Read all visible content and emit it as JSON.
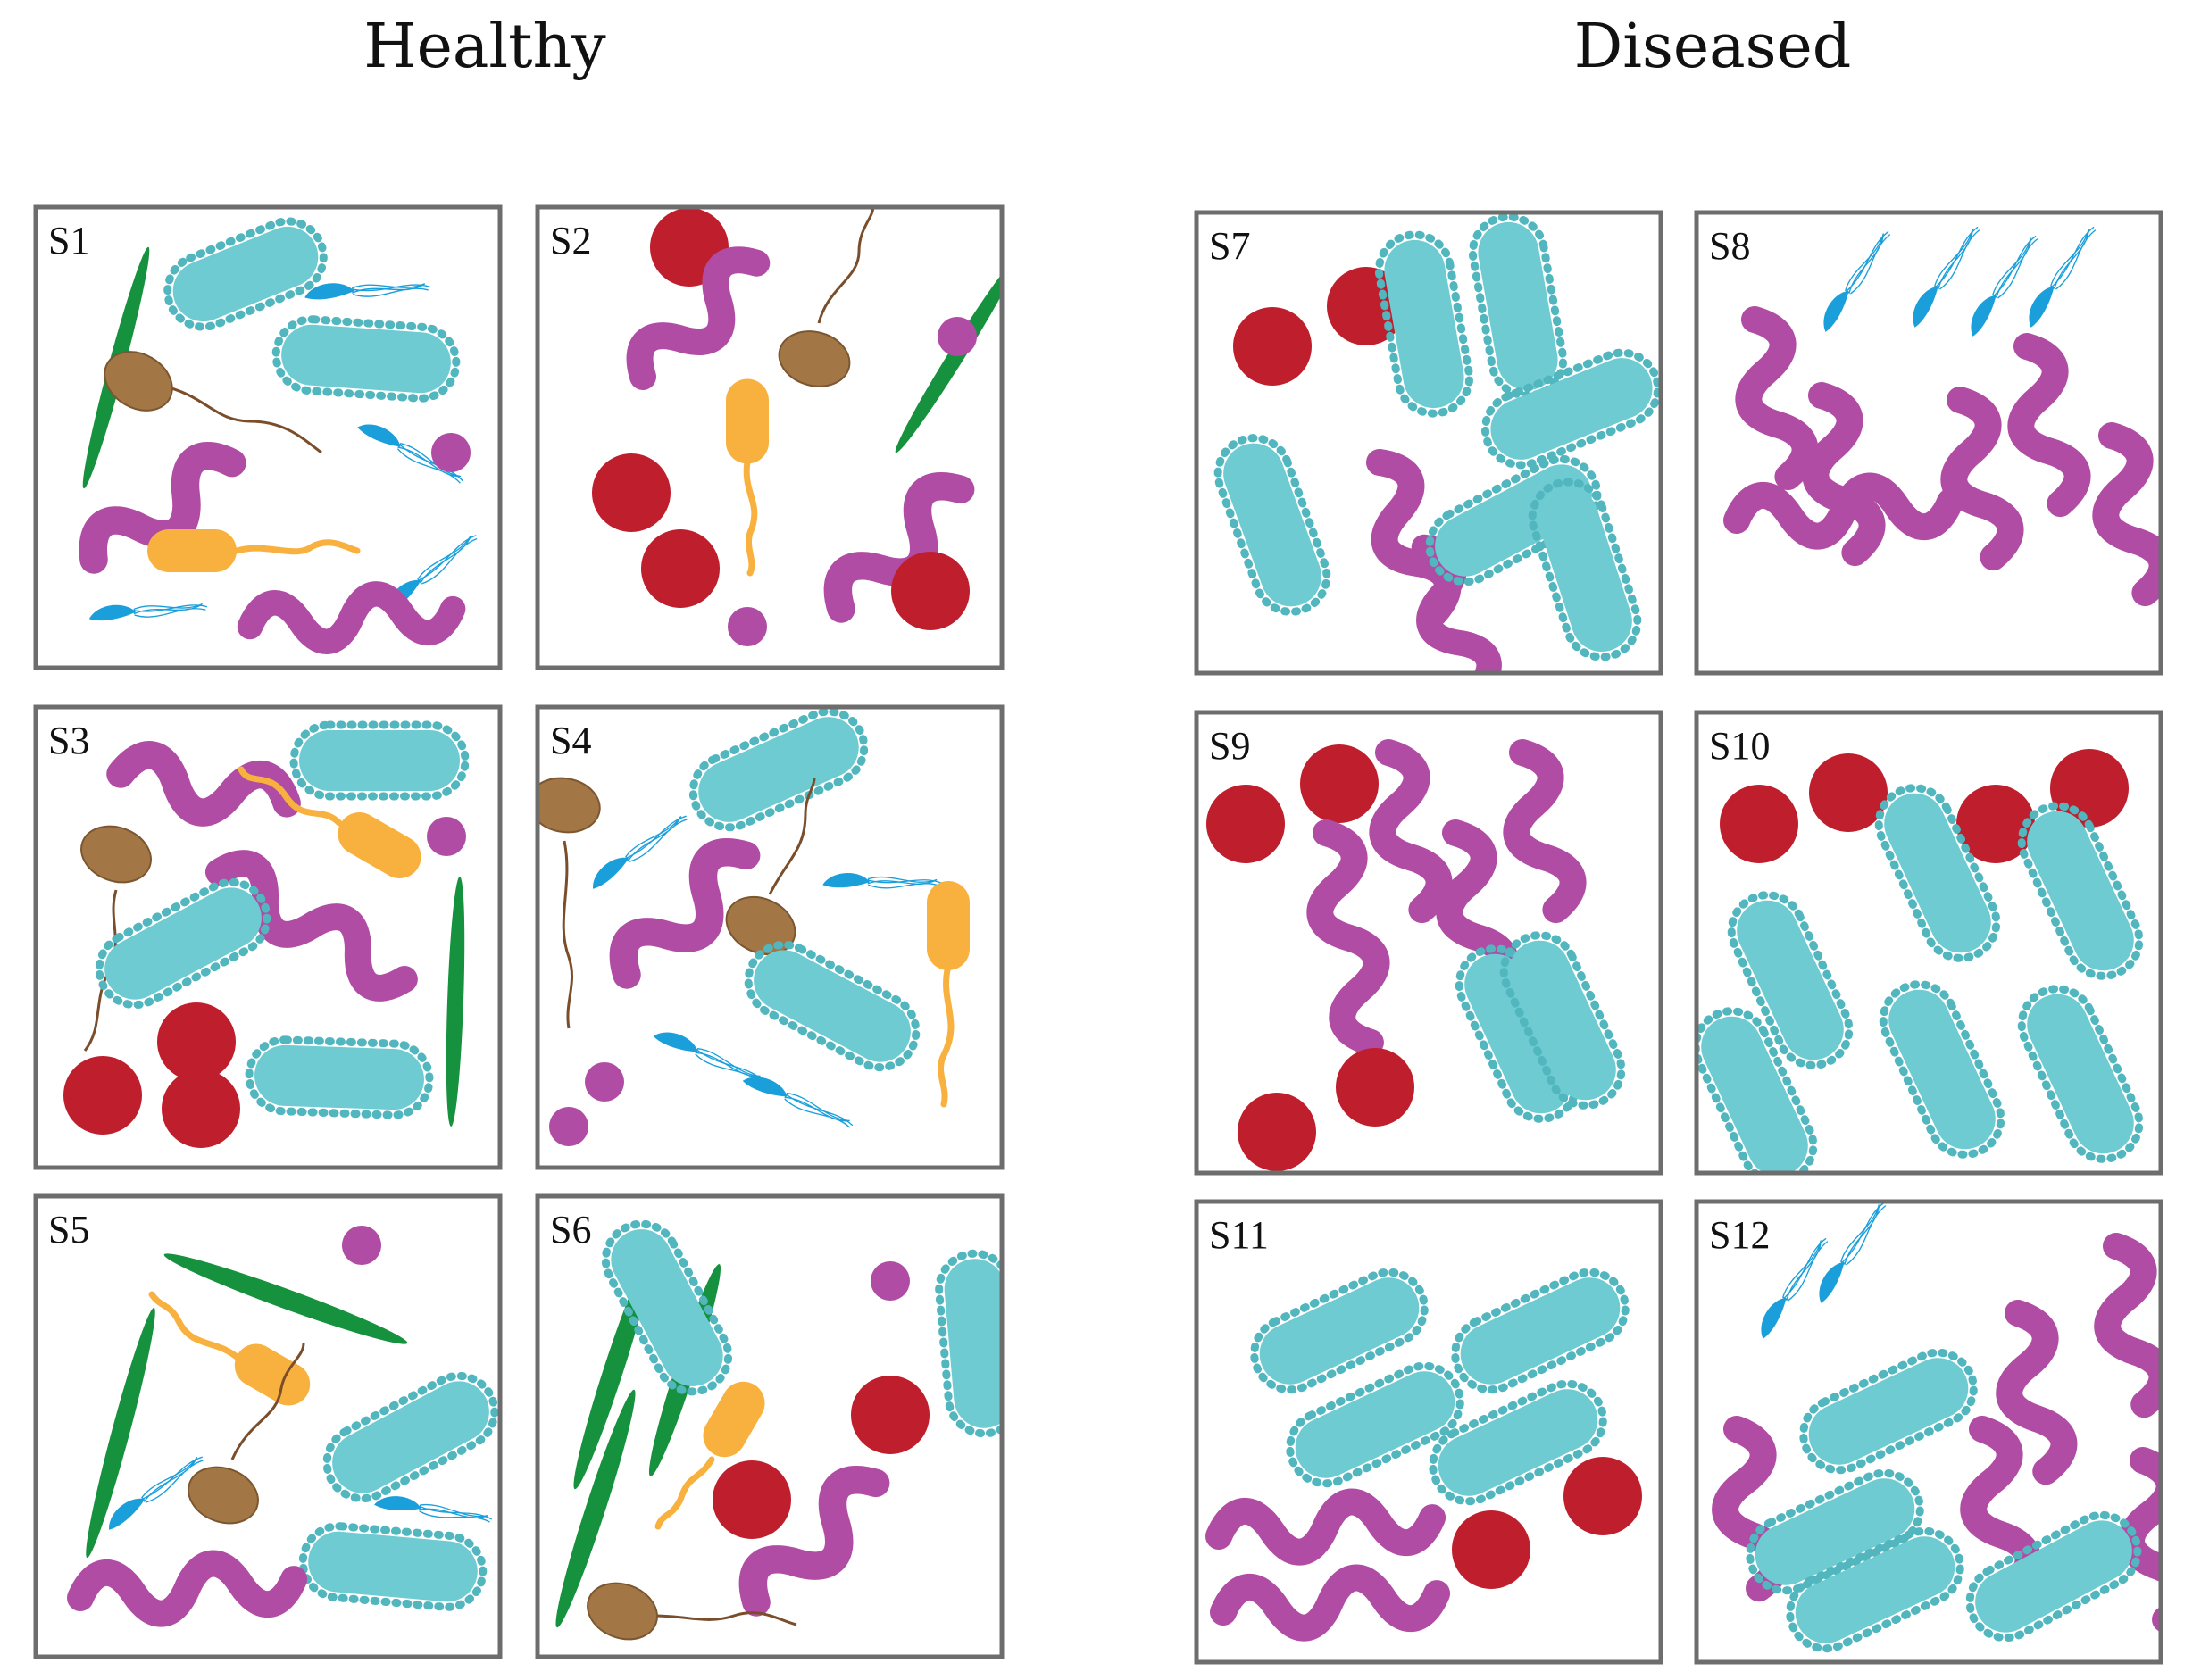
{
  "groups": {
    "healthy": {
      "title": "Healthy"
    },
    "diseased": {
      "title": "Diseased"
    }
  },
  "colors": {
    "frame": "#6d6d6d",
    "green_rod": "#16913d",
    "cyan_bacillus": "#6ecbd2",
    "cyan_spike": "#52b6bf",
    "blue_flagellate": "#1b9fdb",
    "brown_cell": "#a27745",
    "brown_tail": "#7b4e2b",
    "purple_spirochete": "#b04ca4",
    "purple_dot": "#b04ca4",
    "orange_cell": "#f8b13f",
    "red_coccus": "#bf1e2d"
  },
  "samples": [
    {
      "label": "S1",
      "group": "healthy"
    },
    {
      "label": "S2",
      "group": "healthy"
    },
    {
      "label": "S3",
      "group": "healthy"
    },
    {
      "label": "S4",
      "group": "healthy"
    },
    {
      "label": "S5",
      "group": "healthy"
    },
    {
      "label": "S6",
      "group": "healthy"
    },
    {
      "label": "S7",
      "group": "diseased"
    },
    {
      "label": "S8",
      "group": "diseased"
    },
    {
      "label": "S9",
      "group": "diseased"
    },
    {
      "label": "S10",
      "group": "diseased"
    },
    {
      "label": "S11",
      "group": "diseased"
    },
    {
      "label": "S12",
      "group": "diseased"
    }
  ]
}
